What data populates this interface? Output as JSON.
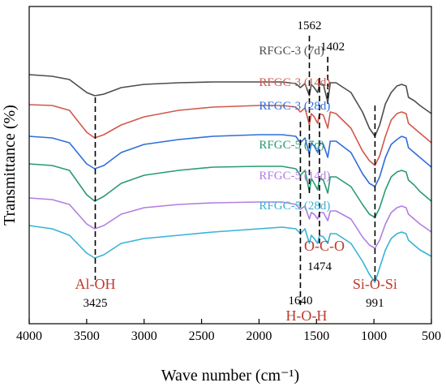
{
  "chart_data": {
    "type": "line",
    "xlabel": "Wave number (cm⁻¹)",
    "ylabel": "Transmittance (%)",
    "xlim": [
      4000,
      500
    ],
    "x_reversed": true,
    "y_ticks_shown": false,
    "xticks": [
      4000,
      3500,
      3000,
      2500,
      2000,
      1500,
      1000,
      500
    ],
    "series": [
      {
        "name": "RFGC-3 (7d)",
        "color": "#4d4d4d",
        "points": [
          [
            4000,
            74
          ],
          [
            3800,
            76
          ],
          [
            3650,
            80
          ],
          [
            3500,
            96
          ],
          [
            3430,
            100
          ],
          [
            3350,
            98
          ],
          [
            3200,
            90
          ],
          [
            3000,
            86
          ],
          [
            2700,
            84
          ],
          [
            2400,
            83
          ],
          [
            2000,
            83
          ],
          [
            1800,
            83
          ],
          [
            1680,
            85
          ],
          [
            1640,
            90
          ],
          [
            1600,
            85
          ],
          [
            1562,
            100
          ],
          [
            1545,
            86
          ],
          [
            1520,
            90
          ],
          [
            1490,
            96
          ],
          [
            1474,
            86
          ],
          [
            1440,
            86
          ],
          [
            1402,
            108
          ],
          [
            1380,
            84
          ],
          [
            1330,
            84
          ],
          [
            1200,
            96
          ],
          [
            1100,
            120
          ],
          [
            1040,
            140
          ],
          [
            991,
            150
          ],
          [
            950,
            136
          ],
          [
            900,
            110
          ],
          [
            850,
            96
          ],
          [
            800,
            88
          ],
          [
            760,
            86
          ],
          [
            720,
            88
          ],
          [
            700,
            102
          ],
          [
            650,
            106
          ],
          [
            600,
            112
          ],
          [
            500,
            122
          ]
        ]
      },
      {
        "name": "RFGC-3 (14d)",
        "color": "#d0594b",
        "points": [
          [
            4000,
            111
          ],
          [
            3800,
            112
          ],
          [
            3650,
            118
          ],
          [
            3500,
            145
          ],
          [
            3430,
            152
          ],
          [
            3350,
            148
          ],
          [
            3200,
            136
          ],
          [
            3000,
            126
          ],
          [
            2700,
            118
          ],
          [
            2400,
            114
          ],
          [
            2000,
            112
          ],
          [
            1800,
            112
          ],
          [
            1680,
            114
          ],
          [
            1640,
            120
          ],
          [
            1600,
            115
          ],
          [
            1562,
            136
          ],
          [
            1545,
            122
          ],
          [
            1520,
            126
          ],
          [
            1490,
            134
          ],
          [
            1474,
            122
          ],
          [
            1440,
            124
          ],
          [
            1402,
            140
          ],
          [
            1380,
            120
          ],
          [
            1330,
            122
          ],
          [
            1200,
            140
          ],
          [
            1100,
            168
          ],
          [
            1040,
            180
          ],
          [
            991,
            186
          ],
          [
            950,
            174
          ],
          [
            900,
            150
          ],
          [
            850,
            130
          ],
          [
            800,
            122
          ],
          [
            760,
            120
          ],
          [
            720,
            122
          ],
          [
            700,
            134
          ],
          [
            650,
            140
          ],
          [
            600,
            146
          ],
          [
            500,
            158
          ]
        ]
      },
      {
        "name": "RFGC-3 (28d)",
        "color": "#2e6edb",
        "points": [
          [
            4000,
            150
          ],
          [
            3800,
            152
          ],
          [
            3650,
            158
          ],
          [
            3500,
            184
          ],
          [
            3430,
            190
          ],
          [
            3350,
            186
          ],
          [
            3200,
            170
          ],
          [
            3000,
            160
          ],
          [
            2700,
            154
          ],
          [
            2400,
            150
          ],
          [
            2000,
            148
          ],
          [
            1800,
            148
          ],
          [
            1680,
            150
          ],
          [
            1640,
            158
          ],
          [
            1600,
            152
          ],
          [
            1562,
            172
          ],
          [
            1545,
            158
          ],
          [
            1520,
            162
          ],
          [
            1490,
            170
          ],
          [
            1474,
            158
          ],
          [
            1440,
            160
          ],
          [
            1402,
            176
          ],
          [
            1380,
            156
          ],
          [
            1330,
            156
          ],
          [
            1200,
            170
          ],
          [
            1100,
            196
          ],
          [
            1040,
            208
          ],
          [
            991,
            212
          ],
          [
            950,
            200
          ],
          [
            900,
            176
          ],
          [
            850,
            160
          ],
          [
            800,
            154
          ],
          [
            760,
            150
          ],
          [
            720,
            152
          ],
          [
            700,
            164
          ],
          [
            650,
            170
          ],
          [
            600,
            176
          ],
          [
            500,
            188
          ]
        ]
      },
      {
        "name": "RFGC-5 (7d)",
        "color": "#2a9a72",
        "points": [
          [
            4000,
            184
          ],
          [
            3800,
            186
          ],
          [
            3650,
            192
          ],
          [
            3500,
            222
          ],
          [
            3430,
            230
          ],
          [
            3350,
            224
          ],
          [
            3200,
            208
          ],
          [
            3000,
            198
          ],
          [
            2700,
            192
          ],
          [
            2400,
            188
          ],
          [
            2000,
            187
          ],
          [
            1800,
            187
          ],
          [
            1680,
            190
          ],
          [
            1640,
            198
          ],
          [
            1600,
            192
          ],
          [
            1562,
            218
          ],
          [
            1545,
            202
          ],
          [
            1520,
            208
          ],
          [
            1490,
            216
          ],
          [
            1474,
            202
          ],
          [
            1440,
            204
          ],
          [
            1402,
            220
          ],
          [
            1380,
            200
          ],
          [
            1330,
            200
          ],
          [
            1200,
            212
          ],
          [
            1100,
            234
          ],
          [
            1040,
            246
          ],
          [
            991,
            250
          ],
          [
            950,
            238
          ],
          [
            900,
            216
          ],
          [
            850,
            200
          ],
          [
            800,
            194
          ],
          [
            760,
            192
          ],
          [
            720,
            194
          ],
          [
            700,
            204
          ],
          [
            650,
            210
          ],
          [
            600,
            218
          ],
          [
            500,
            230
          ]
        ]
      },
      {
        "name": "RFGC-5 (14d)",
        "color": "#b27ee0",
        "points": [
          [
            4000,
            226
          ],
          [
            3800,
            228
          ],
          [
            3650,
            234
          ],
          [
            3500,
            258
          ],
          [
            3430,
            264
          ],
          [
            3350,
            260
          ],
          [
            3200,
            246
          ],
          [
            3000,
            238
          ],
          [
            2700,
            234
          ],
          [
            2400,
            232
          ],
          [
            2000,
            231
          ],
          [
            1800,
            231
          ],
          [
            1680,
            234
          ],
          [
            1640,
            240
          ],
          [
            1600,
            236
          ],
          [
            1562,
            252
          ],
          [
            1545,
            244
          ],
          [
            1520,
            246
          ],
          [
            1490,
            252
          ],
          [
            1474,
            244
          ],
          [
            1440,
            244
          ],
          [
            1402,
            254
          ],
          [
            1380,
            242
          ],
          [
            1330,
            242
          ],
          [
            1200,
            252
          ],
          [
            1100,
            274
          ],
          [
            1040,
            284
          ],
          [
            991,
            288
          ],
          [
            950,
            278
          ],
          [
            900,
            258
          ],
          [
            850,
            244
          ],
          [
            800,
            238
          ],
          [
            760,
            236
          ],
          [
            720,
            238
          ],
          [
            700,
            246
          ],
          [
            650,
            252
          ],
          [
            600,
            258
          ],
          [
            500,
            268
          ]
        ]
      },
      {
        "name": "RFGC-5 (28d)",
        "color": "#38b2d8",
        "points": [
          [
            4000,
            260
          ],
          [
            3800,
            264
          ],
          [
            3650,
            272
          ],
          [
            3500,
            294
          ],
          [
            3430,
            300
          ],
          [
            3350,
            296
          ],
          [
            3200,
            282
          ],
          [
            3000,
            276
          ],
          [
            2700,
            272
          ],
          [
            2400,
            268
          ],
          [
            2000,
            264
          ],
          [
            1800,
            262
          ],
          [
            1680,
            264
          ],
          [
            1640,
            270
          ],
          [
            1600,
            264
          ],
          [
            1562,
            282
          ],
          [
            1545,
            272
          ],
          [
            1520,
            276
          ],
          [
            1490,
            282
          ],
          [
            1474,
            272
          ],
          [
            1440,
            274
          ],
          [
            1402,
            282
          ],
          [
            1380,
            270
          ],
          [
            1330,
            270
          ],
          [
            1200,
            282
          ],
          [
            1100,
            304
          ],
          [
            1040,
            320
          ],
          [
            991,
            330
          ],
          [
            950,
            312
          ],
          [
            900,
            290
          ],
          [
            850,
            276
          ],
          [
            800,
            270
          ],
          [
            760,
            268
          ],
          [
            720,
            270
          ],
          [
            700,
            278
          ],
          [
            650,
            284
          ],
          [
            600,
            290
          ],
          [
            500,
            298
          ]
        ]
      }
    ],
    "peak_lines": [
      {
        "x": 3425,
        "value_label": "3425",
        "group_label": "Al-OH"
      },
      {
        "x": 1640,
        "value_label": "1640",
        "group_label": "H-O-H"
      },
      {
        "x": 1562,
        "value_label": "1562",
        "group_label": ""
      },
      {
        "x": 1474,
        "value_label": "1474",
        "group_label": "O-C-O"
      },
      {
        "x": 1402,
        "value_label": "1402",
        "group_label": ""
      },
      {
        "x": 991,
        "value_label": "991",
        "group_label": "Si-O-Si"
      }
    ],
    "group_label_color": "#c0392b",
    "frame_color": "#000000"
  }
}
